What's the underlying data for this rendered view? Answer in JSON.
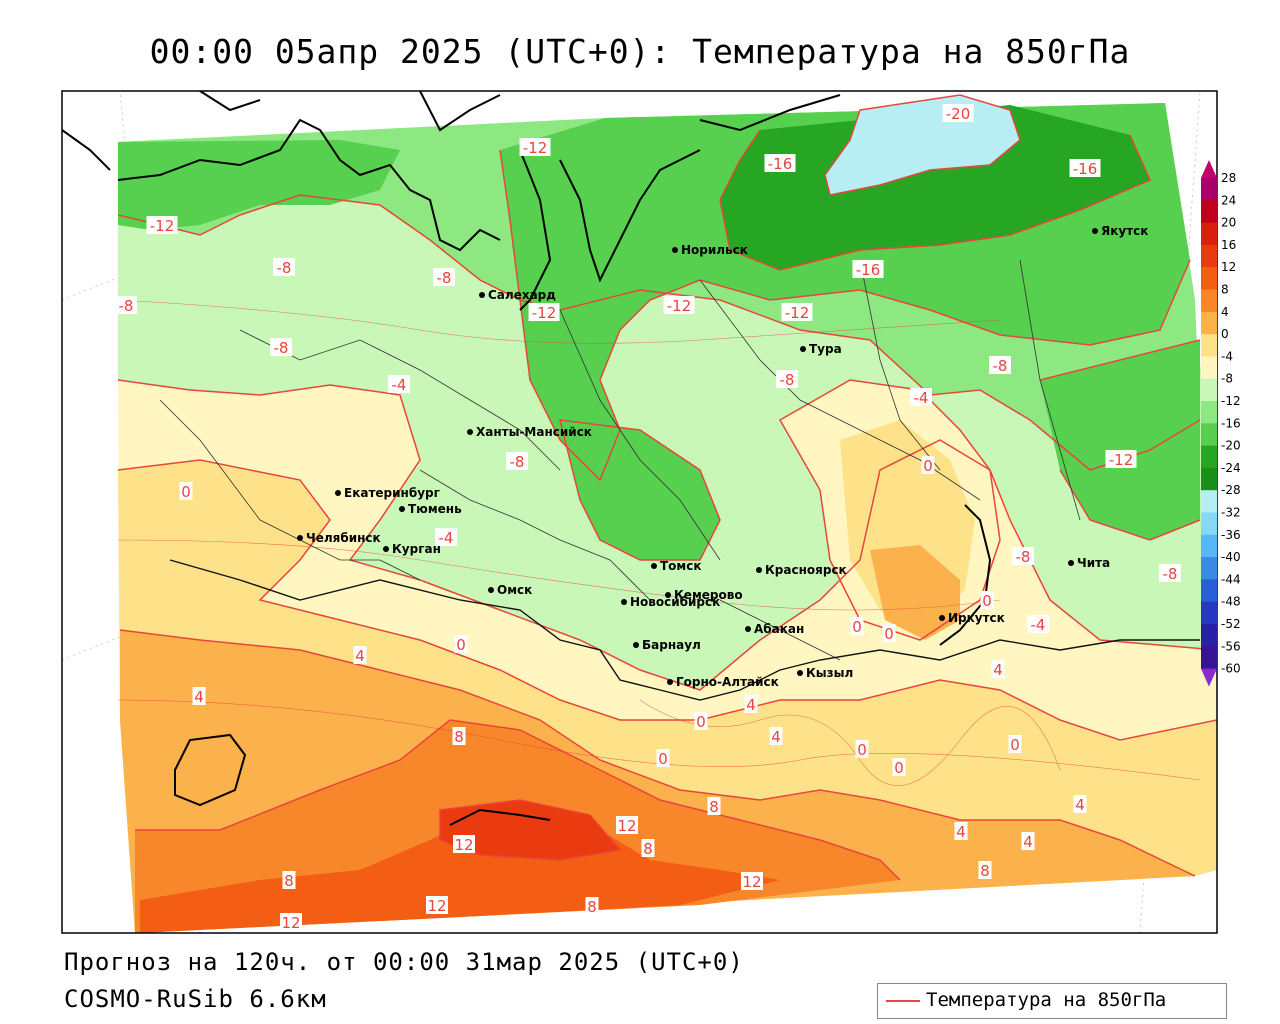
{
  "title": "00:00 05апр 2025 (UTC+0): Температура на 850гПа",
  "footer": {
    "forecast": "Прогноз на 120ч. от 00:00 31мар 2025 (UTC+0)",
    "model": "COSMO-RuSib 6.6км"
  },
  "legend": {
    "label": "Температура на 850гПа",
    "line_color": "#e8453c"
  },
  "colorbar": {
    "ticks": [
      "28",
      "24",
      "20",
      "16",
      "12",
      "8",
      "4",
      "0",
      "-4",
      "-8",
      "-12",
      "-16",
      "-20",
      "-24",
      "-28",
      "-32",
      "-36",
      "-40",
      "-44",
      "-48",
      "-52",
      "-56",
      "-60"
    ],
    "colors": [
      "#a8006a",
      "#c0001a",
      "#d8200c",
      "#ea3a10",
      "#f45d14",
      "#f8862a",
      "#fcb24c",
      "#fde28a",
      "#fff6c2",
      "#c8f7b8",
      "#8ee882",
      "#56d04e",
      "#26a622",
      "#189018",
      "#b6eef4",
      "#86d8f6",
      "#56b8f4",
      "#3a8ae6",
      "#2a5ed8",
      "#2438c2",
      "#2a20a8",
      "#381494",
      "#1c0a7a"
    ]
  },
  "cities": [
    {
      "name": "Норильск"
    },
    {
      "name": "Якутск"
    },
    {
      "name": "Салехард"
    },
    {
      "name": "Тура"
    },
    {
      "name": "Ханты-Мансийск"
    },
    {
      "name": "Екатеринбург"
    },
    {
      "name": "Тюмень"
    },
    {
      "name": "Челябинск"
    },
    {
      "name": "Курган"
    },
    {
      "name": "Омск"
    },
    {
      "name": "Новосибирск"
    },
    {
      "name": "Томск"
    },
    {
      "name": "Кемерово"
    },
    {
      "name": "Красноярск"
    },
    {
      "name": "Барнаул"
    },
    {
      "name": "Абакан"
    },
    {
      "name": "Горно-Алтайск"
    },
    {
      "name": "Кызыл"
    },
    {
      "name": "Иркутск"
    },
    {
      "name": "Чита"
    }
  ],
  "isotherm_labels": [
    "-20",
    "-16",
    "-16",
    "-16",
    "-12",
    "-12",
    "-12",
    "-12",
    "-12",
    "-12",
    "-8",
    "-8",
    "-8",
    "-8",
    "-8",
    "-8",
    "-8",
    "-8",
    "-8",
    "-4",
    "-4",
    "-4",
    "-4",
    "0",
    "0",
    "0",
    "0",
    "0",
    "0",
    "0",
    "0",
    "0",
    "0",
    "0",
    "4",
    "4",
    "4",
    "4",
    "4",
    "4",
    "4",
    "4",
    "8",
    "8",
    "8",
    "8",
    "8",
    "8",
    "12",
    "12",
    "12",
    "12",
    "12"
  ]
}
